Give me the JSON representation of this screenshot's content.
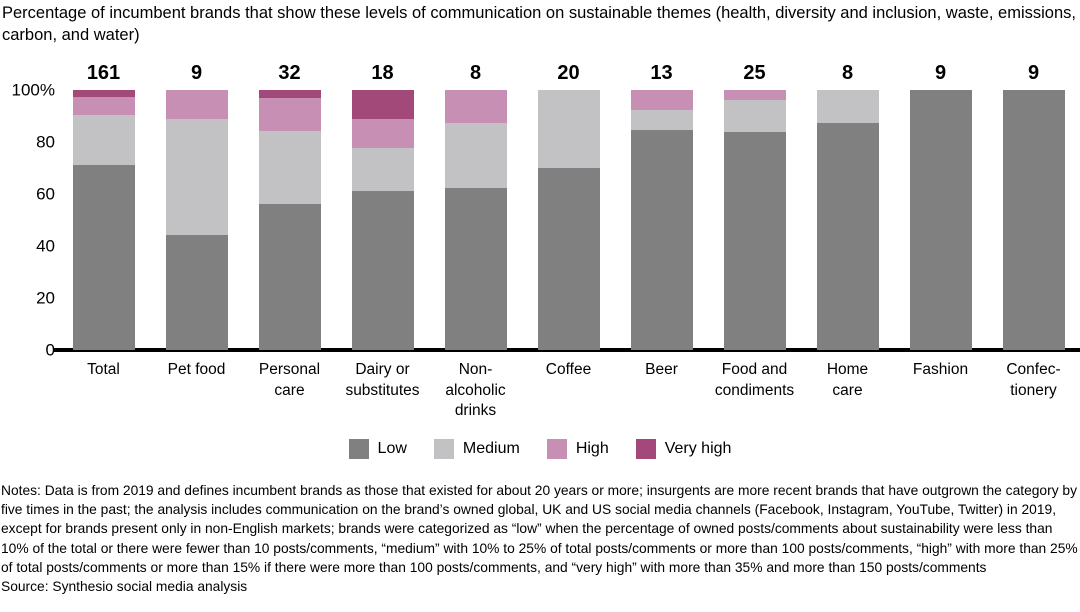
{
  "title": "Percentage of incumbent brands that show these levels of communication on sustainable themes (health, diversity and inclusion, waste, emissions, carbon, and water)",
  "chart_data": {
    "type": "bar",
    "stacked": true,
    "unit": "percent",
    "title": "Percentage of incumbent brands that show these levels of communication on sustainable themes (health, diversity and inclusion, waste, emissions, carbon, and water)",
    "categories": [
      "Total",
      "Pet food",
      "Personal\ncare",
      "Dairy or\nsubstitutes",
      "Non-\nalcoholic\ndrinks",
      "Coffee",
      "Beer",
      "Food and\ncondiments",
      "Home\ncare",
      "Fashion",
      "Confec-\ntionery"
    ],
    "counts": [
      161,
      9,
      32,
      18,
      8,
      20,
      13,
      25,
      8,
      9,
      9
    ],
    "series": [
      {
        "name": "Low",
        "color": "#808080",
        "values": [
          71,
          44.4,
          56.3,
          61.1,
          62.5,
          70,
          84.6,
          84,
          87.5,
          100,
          100
        ]
      },
      {
        "name": "Medium",
        "color": "#c2c2c4",
        "values": [
          19.5,
          44.4,
          28.1,
          16.7,
          25,
          30,
          7.7,
          12,
          12.5,
          0,
          0
        ]
      },
      {
        "name": "High",
        "color": "#c78fb4",
        "values": [
          7,
          11.2,
          12.5,
          11.1,
          12.5,
          0,
          7.7,
          4,
          0,
          0,
          0
        ]
      },
      {
        "name": "Very high",
        "color": "#a2497a",
        "values": [
          2.5,
          0,
          3.1,
          11.1,
          0,
          0,
          0,
          0,
          0,
          0,
          0
        ]
      }
    ],
    "y_ticks": [
      "100%",
      "80",
      "60",
      "40",
      "20",
      "0"
    ],
    "ylim": [
      0,
      100
    ],
    "grid": false,
    "legend_position": "bottom",
    "legend": [
      "Low",
      "Medium",
      "High",
      "Very high"
    ]
  },
  "notes": {
    "text": "Notes: Data is from 2019 and defines incumbent brands as those that existed for about 20 years or more; insurgents are more recent brands that have outgrown the category by five times in the past; the analysis includes communication on the brand’s owned global, UK and US social media channels (Facebook, Instagram, YouTube, Twitter) in 2019, except for brands present only in non-English markets; brands were categorized as “low” when the percentage of owned posts/comments about sustainability were less than 10% of the total or there were fewer than 10 posts/comments, “medium” with 10% to 25% of total posts/comments or more than 100 posts/comments, “high” with more than 25% of total posts/comments or more than 15% if there were more than 100 posts/comments, and “very high” with more than 35% and more than 150 posts/comments",
    "source": "Source: Synthesio social media analysis"
  }
}
